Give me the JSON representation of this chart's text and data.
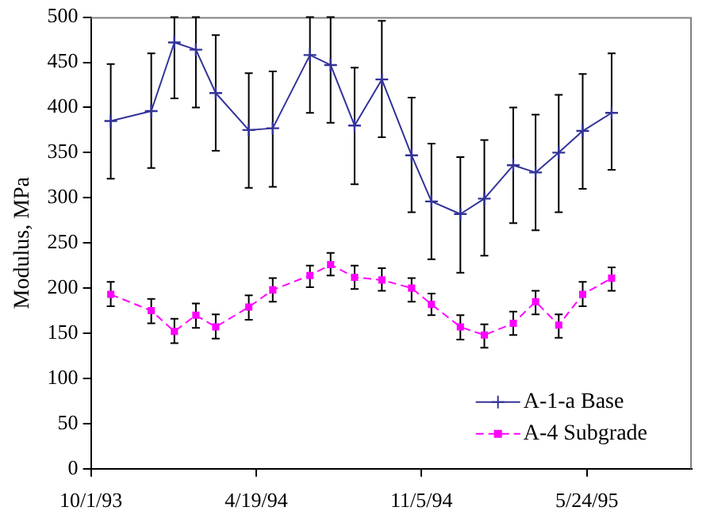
{
  "chart_data": {
    "type": "line",
    "ylabel": "Modulus, MPa",
    "x": [
      "1993-10-25",
      "1993-12-13",
      "1994-01-10",
      "1994-02-05",
      "1994-03-01",
      "1994-04-10",
      "1994-05-09",
      "1994-06-23",
      "1994-07-18",
      "1994-08-16",
      "1994-09-18",
      "1994-10-24",
      "1994-11-17",
      "1994-12-22",
      "1995-01-20",
      "1995-02-24",
      "1995-03-23",
      "1995-04-20",
      "1995-05-19",
      "1995-06-23"
    ],
    "series": [
      {
        "name": "A-1-a Base",
        "color": "#333399",
        "marker": "cross",
        "line_style": "solid",
        "values": [
          385,
          396,
          472,
          464,
          416,
          375,
          377,
          458,
          447,
          380,
          431,
          347,
          296,
          282,
          299,
          336,
          328,
          350,
          374,
          394
        ],
        "errors": [
          [
            321,
            448
          ],
          [
            333,
            460
          ],
          [
            410,
            500
          ],
          [
            400,
            500
          ],
          [
            352,
            480
          ],
          [
            311,
            438
          ],
          [
            312,
            440
          ],
          [
            394,
            500
          ],
          [
            383,
            500
          ],
          [
            315,
            444
          ],
          [
            367,
            496
          ],
          [
            284,
            411
          ],
          [
            232,
            360
          ],
          [
            217,
            345
          ],
          [
            236,
            364
          ],
          [
            272,
            400
          ],
          [
            264,
            392
          ],
          [
            284,
            414
          ],
          [
            310,
            437
          ],
          [
            331,
            460
          ]
        ]
      },
      {
        "name": "A-4 Subgrade",
        "color": "#ff00ff",
        "marker": "square",
        "line_style": "dashed",
        "values": [
          193,
          175,
          152,
          170,
          157,
          179,
          198,
          214,
          226,
          212,
          209,
          200,
          182,
          157,
          148,
          161,
          185,
          159,
          193,
          211
        ],
        "errors": [
          [
            180,
            207
          ],
          [
            161,
            188
          ],
          [
            139,
            166
          ],
          [
            156,
            183
          ],
          [
            144,
            171
          ],
          [
            165,
            192
          ],
          [
            185,
            211
          ],
          [
            201,
            225
          ],
          [
            214,
            239
          ],
          [
            199,
            225
          ],
          [
            197,
            222
          ],
          [
            185,
            211
          ],
          [
            170,
            194
          ],
          [
            143,
            170
          ],
          [
            134,
            160
          ],
          [
            148,
            174
          ],
          [
            171,
            197
          ],
          [
            145,
            171
          ],
          [
            180,
            207
          ],
          [
            197,
            223
          ]
        ]
      }
    ],
    "xlim": [
      "1993-10-01",
      "1995-09-28"
    ],
    "xticks": [
      {
        "value": "1993-10-01",
        "label": "10/1/93"
      },
      {
        "value": "1994-04-19",
        "label": "4/19/94"
      },
      {
        "value": "1994-11-05",
        "label": "11/5/94"
      },
      {
        "value": "1995-05-24",
        "label": "5/24/95"
      }
    ],
    "ylim": [
      0,
      500
    ],
    "yticks": [
      0,
      50,
      100,
      150,
      200,
      250,
      300,
      350,
      400,
      450,
      500
    ],
    "grid": false,
    "legend": "bottom right"
  }
}
